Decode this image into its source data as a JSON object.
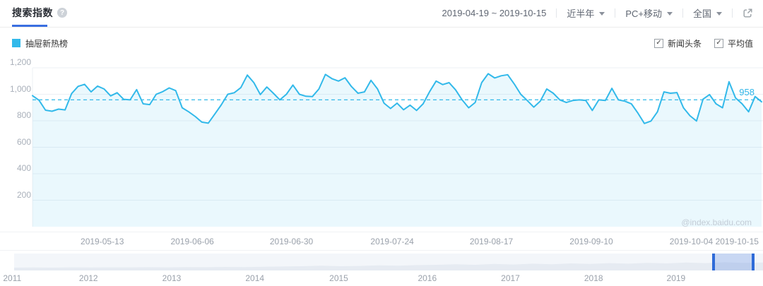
{
  "app": {
    "watermark": "@index.baidu.com"
  },
  "colors": {
    "accent_blue": "#3a6fe0",
    "series_cyan": "#32b9ea",
    "handle_blue": "#2f6bd8"
  },
  "header": {
    "title": "搜索指数",
    "date_range": "2019-04-19 ~ 2019-10-15",
    "filters": {
      "time": "近半年",
      "device": "PC+移动",
      "region": "全国"
    }
  },
  "legend": {
    "keyword": "抽屉新热榜"
  },
  "toggles": {
    "news": "新闻头条",
    "average": "平均值"
  },
  "chart_data": {
    "type": "line",
    "title": "搜索指数",
    "x_range": [
      "2019-04-19",
      "2019-10-15"
    ],
    "x_tick_labels": [
      "2019-05-13",
      "2019-06-06",
      "2019-06-30",
      "2019-07-24",
      "2019-08-17",
      "2019-09-10",
      "2019-10-04",
      "2019-10-15"
    ],
    "x_tick_pos_pct": [
      13.4,
      25.2,
      38.2,
      51.4,
      64.4,
      77.5,
      90.6,
      96.6
    ],
    "y_ticks": [
      {
        "value": 1200,
        "label": "1,200"
      },
      {
        "value": 1000,
        "label": "1,000"
      },
      {
        "value": 800,
        "label": "800"
      },
      {
        "value": 600,
        "label": "600"
      },
      {
        "value": 400,
        "label": "400"
      },
      {
        "value": 200,
        "label": "200"
      }
    ],
    "ylim": [
      0,
      1200
    ],
    "grid": true,
    "legend_position": "top-left",
    "average": 958,
    "average_label": "958",
    "series": [
      {
        "name": "抽屉新热榜",
        "color": "#32b9ea",
        "values": [
          990,
          955,
          880,
          872,
          888,
          882,
          1005,
          1060,
          1075,
          1018,
          1062,
          1040,
          988,
          1012,
          962,
          958,
          1035,
          928,
          922,
          1000,
          1020,
          1048,
          1028,
          898,
          868,
          832,
          790,
          782,
          850,
          920,
          1000,
          1012,
          1050,
          1145,
          1088,
          998,
          1055,
          1008,
          958,
          1000,
          1070,
          1000,
          985,
          983,
          1040,
          1150,
          1118,
          1100,
          1125,
          1058,
          1008,
          1018,
          1105,
          1040,
          933,
          893,
          933,
          883,
          918,
          878,
          928,
          1020,
          1100,
          1073,
          1088,
          1033,
          958,
          898,
          938,
          1088,
          1155,
          1123,
          1140,
          1148,
          1078,
          1000,
          953,
          903,
          948,
          1040,
          1008,
          958,
          938,
          953,
          958,
          953,
          878,
          958,
          953,
          1045,
          958,
          948,
          928,
          858,
          780,
          798,
          868,
          1018,
          1008,
          1013,
          898,
          838,
          798,
          963,
          998,
          928,
          898,
          1095,
          973,
          928,
          868,
          983,
          943
        ]
      }
    ]
  },
  "timeline": {
    "years": [
      "2011",
      "2012",
      "2013",
      "2014",
      "2015",
      "2016",
      "2017",
      "2018",
      "2019"
    ],
    "year_pos_pct": [
      1.6,
      11.6,
      22.5,
      33.4,
      44.4,
      56.0,
      66.9,
      77.8,
      88.6
    ],
    "selection": {
      "start_pct": 93.3,
      "width_pct": 5.6
    },
    "overview_values": [
      0.1,
      0.11,
      0.1,
      0.12,
      0.11,
      0.12,
      0.12,
      0.13,
      0.12,
      0.14,
      0.13,
      0.15,
      0.14,
      0.16,
      0.18,
      0.2,
      0.24,
      0.2,
      0.22,
      0.26,
      0.24,
      0.28,
      0.3,
      0.34,
      0.3,
      0.36,
      0.32,
      0.38,
      0.34,
      0.4,
      0.36,
      0.42,
      0.38,
      0.44,
      0.4,
      0.46,
      0.42,
      0.48,
      0.44,
      0.46
    ]
  }
}
